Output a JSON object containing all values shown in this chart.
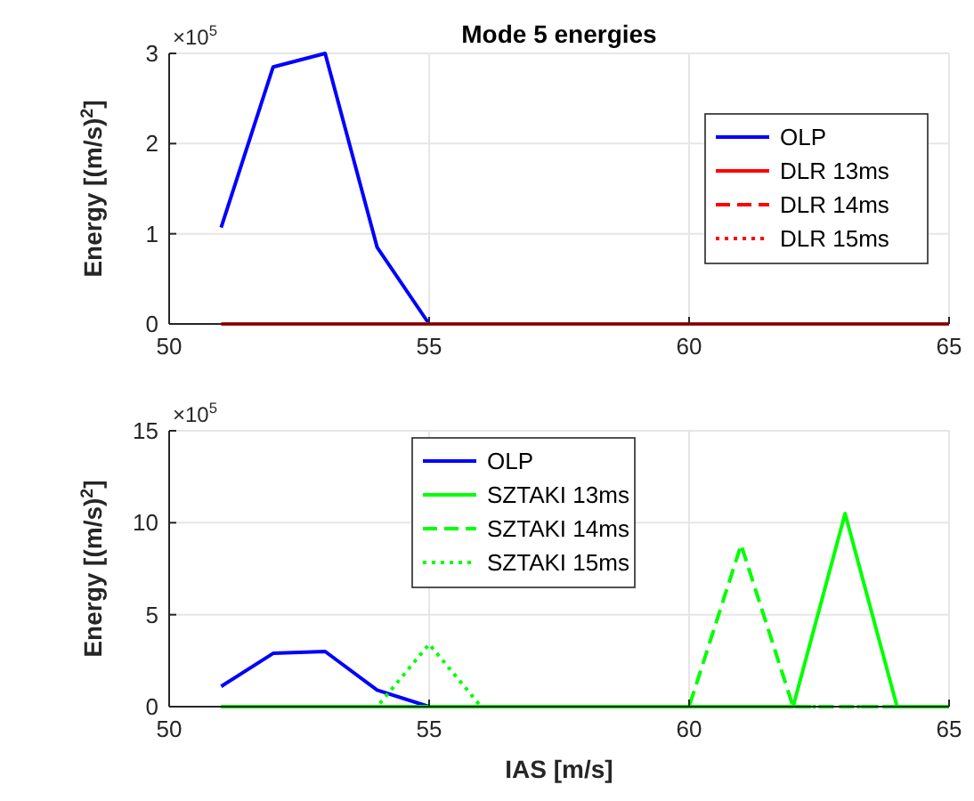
{
  "chart_data": [
    {
      "type": "line",
      "title": "Mode 5 energies",
      "ylabel": "Energy [(m/s)$^{2}$]",
      "annotations": [
        "×10$^{5}$"
      ],
      "x": [
        51,
        52,
        53,
        54,
        55,
        56,
        57,
        58,
        59,
        60,
        61,
        62,
        63,
        64,
        65
      ],
      "xlim": [
        50,
        65
      ],
      "xticks": [
        50,
        55,
        60,
        65
      ],
      "ylim": [
        0,
        3
      ],
      "yticks": [
        0,
        1,
        2,
        3
      ],
      "grid": true,
      "legend": "right",
      "series": [
        {
          "name": "OLP",
          "color": "#0000ff",
          "line_style": "solid",
          "x": [
            51,
            52,
            53,
            54,
            55
          ],
          "values": [
            1.07,
            2.85,
            3.0,
            0.85,
            0
          ]
        },
        {
          "name": "DLR 13ms",
          "color": "#ff0000",
          "line_style": "solid",
          "values": [
            0,
            0,
            0,
            0,
            0,
            0,
            0,
            0,
            0,
            0,
            0,
            0,
            0,
            0,
            0
          ]
        },
        {
          "name": "DLR 14ms",
          "color": "#ff0000",
          "line_style": "dashed",
          "values": [
            null,
            null,
            null,
            null,
            null,
            null,
            null,
            null,
            null,
            null,
            null,
            null,
            null,
            null,
            null
          ]
        },
        {
          "name": "DLR 15ms",
          "color": "#ff0000",
          "line_style": "dotted",
          "values": [
            null,
            null,
            null,
            null,
            null,
            null,
            null,
            null,
            null,
            null,
            null,
            null,
            null,
            null,
            null
          ]
        }
      ]
    },
    {
      "type": "line",
      "xlabel": "IAS [m/s]",
      "ylabel": "Energy [(m/s)$^{2}$]",
      "annotations": [
        "×10$^{5}$"
      ],
      "x": [
        51,
        52,
        53,
        54,
        55,
        56,
        57,
        58,
        59,
        60,
        61,
        62,
        63,
        64,
        65
      ],
      "xlim": [
        50,
        65
      ],
      "xticks": [
        50,
        55,
        60,
        65
      ],
      "ylim": [
        0,
        15
      ],
      "yticks": [
        0,
        5,
        10,
        15
      ],
      "grid": true,
      "legend": "top",
      "series": [
        {
          "name": "OLP",
          "color": "#0000ff",
          "line_style": "solid",
          "x": [
            51,
            52,
            53,
            54,
            55
          ],
          "values": [
            1.1,
            2.9,
            3.0,
            0.9,
            0
          ]
        },
        {
          "name": "SZTAKI 13ms",
          "color": "#00ff00",
          "line_style": "solid",
          "values": [
            0,
            0,
            0,
            0,
            0,
            0,
            0,
            0,
            0,
            0,
            0,
            0,
            10.5,
            0,
            0
          ]
        },
        {
          "name": "SZTAKI 14ms",
          "color": "#00ff00",
          "line_style": "dashed",
          "values": [
            0,
            0,
            0,
            0,
            0,
            0,
            0,
            0,
            0,
            0,
            8.8,
            0,
            0,
            0,
            0
          ]
        },
        {
          "name": "SZTAKI 15ms",
          "color": "#00ff00",
          "line_style": "dotted",
          "values": [
            0,
            0,
            0,
            0,
            3.4,
            0,
            0,
            0,
            0,
            0,
            0,
            0,
            0,
            0,
            0
          ]
        }
      ]
    }
  ]
}
